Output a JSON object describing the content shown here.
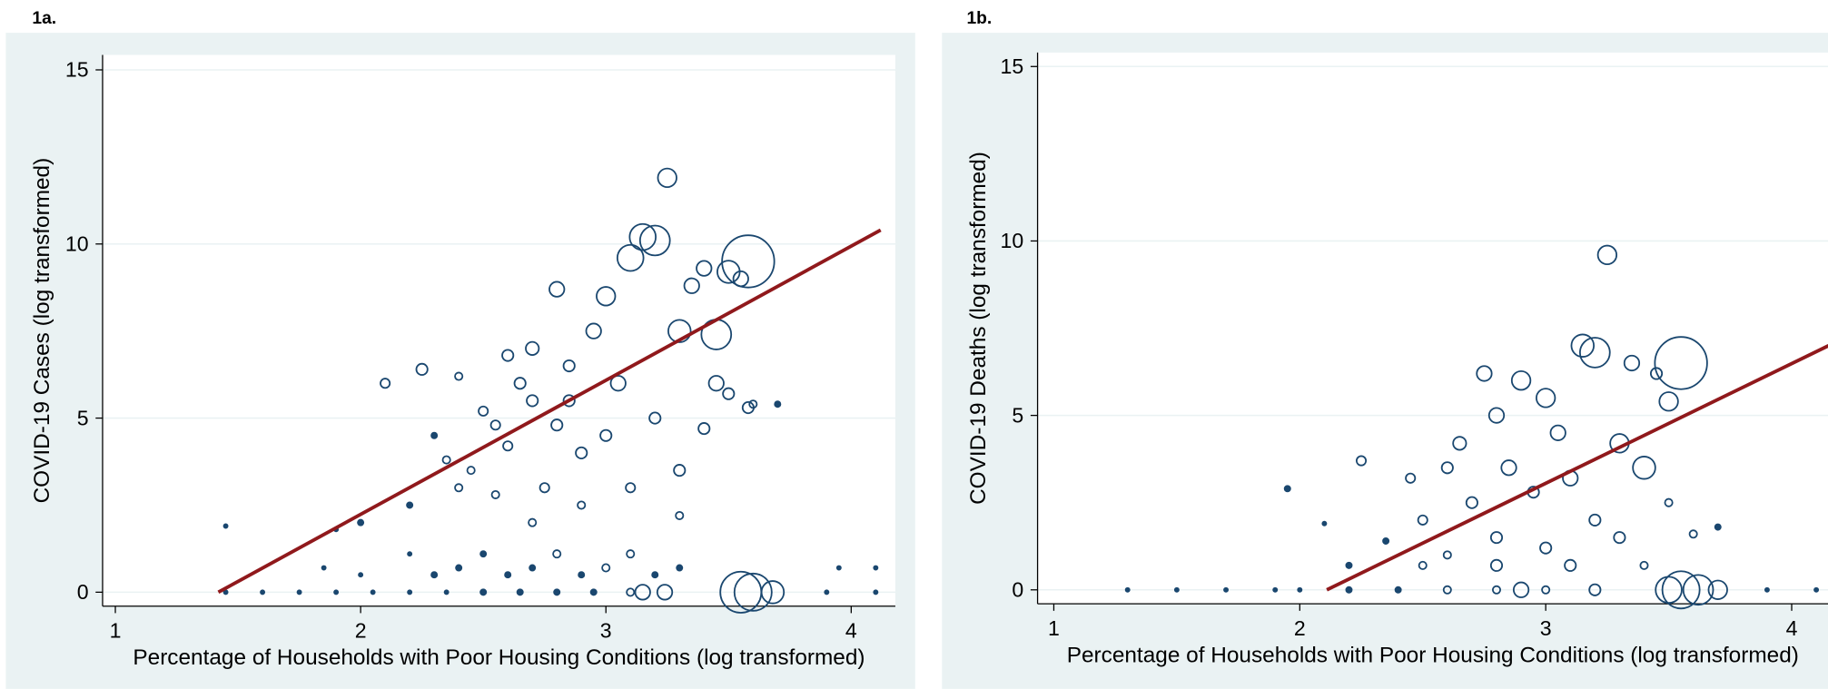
{
  "chart_data": [
    {
      "type": "scatter",
      "title": "1a.",
      "x_label": "Percentage of Households with Poor Housing Conditions (log transformed)",
      "y_label": "COVID-19 Cases (log transformed)",
      "xlim": [
        0.948,
        4.18
      ],
      "ylim": [
        -0.4,
        15.43
      ],
      "xticks": [
        1,
        2,
        3,
        4
      ],
      "yticks": [
        0,
        5,
        10,
        15
      ],
      "grid": true,
      "color": "#1a476f",
      "x": [
        1.45,
        1.6,
        1.75,
        1.9,
        2.05,
        2.2,
        2.35,
        2.5,
        2.65,
        2.8,
        2.95,
        3.1,
        3.15,
        3.24,
        3.55,
        3.6,
        3.68,
        3.9,
        4.1,
        2.0,
        2.3,
        2.6,
        2.9,
        3.2,
        1.85,
        2.4,
        2.7,
        3.0,
        3.3,
        3.95,
        4.1,
        2.2,
        2.5,
        2.8,
        3.1,
        1.45,
        2.1,
        2.25,
        2.3,
        2.4,
        2.45,
        2.5,
        2.55,
        2.6,
        2.65,
        2.7,
        2.75,
        2.8,
        2.85,
        2.9,
        2.95,
        3.0,
        3.05,
        3.1,
        3.15,
        3.2,
        3.25,
        3.3,
        3.35,
        3.4,
        3.5,
        3.55,
        3.58,
        3.6,
        3.45,
        3.4,
        3.3,
        3.3,
        3.2,
        3.1,
        2.9,
        2.7,
        2.6,
        2.85,
        3.0,
        2.8,
        2.7,
        2.55,
        2.4,
        2.35,
        2.2,
        2.0,
        1.9,
        3.5,
        3.45,
        3.58,
        3.7
      ],
      "y": [
        0,
        0,
        0,
        0,
        0,
        0,
        0,
        0,
        0,
        0,
        0,
        0,
        0,
        0,
        0,
        0,
        0,
        0,
        0,
        0.5,
        0.5,
        0.5,
        0.5,
        0.5,
        0.7,
        0.7,
        0.7,
        0.7,
        0.7,
        0.7,
        0.7,
        1.1,
        1.1,
        1.1,
        1.1,
        1.9,
        6.0,
        6.4,
        4.5,
        6.2,
        3.5,
        5.2,
        2.8,
        4.2,
        6.0,
        7.0,
        3.0,
        8.7,
        5.5,
        4.0,
        7.5,
        8.5,
        6.0,
        9.6,
        10.2,
        10.1,
        11.9,
        7.5,
        8.8,
        9.3,
        9.2,
        9.0,
        9.5,
        5.4,
        6.0,
        4.7,
        3.5,
        2.2,
        5.0,
        3.0,
        2.5,
        2.0,
        6.8,
        6.5,
        4.5,
        4.8,
        5.5,
        4.8,
        3.0,
        3.8,
        2.5,
        2.0,
        1.8,
        5.7,
        7.4,
        5.3,
        5.4
      ],
      "sizes": [
        1,
        1,
        1,
        1,
        1,
        1,
        1,
        1.5,
        1.5,
        1.5,
        1.5,
        2,
        4,
        4,
        11,
        10,
        6,
        1,
        1,
        1,
        1.5,
        1.5,
        1.5,
        1.5,
        1,
        1.5,
        1.5,
        2,
        1.5,
        1,
        1,
        1,
        1.5,
        2,
        2,
        1,
        2.5,
        3,
        1.5,
        2,
        2,
        2.5,
        2,
        2.5,
        3,
        3.5,
        2.5,
        4,
        3,
        3,
        4,
        5,
        4,
        7,
        7,
        8,
        5,
        6,
        4,
        4,
        6,
        4,
        14,
        2,
        4,
        3,
        3,
        2,
        3,
        2.5,
        2,
        2,
        3,
        3,
        3,
        3,
        3,
        2.5,
        2,
        2,
        1.5,
        1.5,
        1,
        3,
        8,
        3,
        1.5
      ],
      "fit": {
        "x": [
          1.42,
          4.12
        ],
        "y": [
          0,
          10.4
        ],
        "color": "#90191c"
      }
    },
    {
      "type": "scatter",
      "title": "1b.",
      "x_label": "Percentage of Households with Poor Housing Conditions (log transformed)",
      "y_label": "COVID-19 Deaths (log transformed)",
      "xlim": [
        0.934,
        4.214
      ],
      "ylim": [
        -0.4,
        15.4
      ],
      "xticks": [
        1,
        2,
        3,
        4
      ],
      "yticks": [
        0,
        5,
        10,
        15
      ],
      "grid": true,
      "color": "#1a476f",
      "x": [
        1.3,
        1.5,
        1.7,
        1.9,
        2.0,
        2.2,
        2.4,
        2.6,
        2.8,
        2.9,
        3.0,
        3.2,
        3.5,
        3.55,
        3.62,
        3.7,
        3.9,
        4.1,
        2.2,
        2.5,
        2.8,
        3.1,
        3.4,
        1.95,
        2.1,
        2.25,
        2.35,
        2.45,
        2.5,
        2.6,
        2.65,
        2.7,
        2.75,
        2.8,
        2.85,
        2.9,
        2.95,
        3.0,
        3.05,
        3.1,
        3.15,
        3.2,
        3.25,
        3.3,
        3.35,
        3.4,
        3.45,
        3.5,
        3.55,
        3.3,
        3.5,
        3.6,
        3.7,
        2.8,
        3.0,
        3.2,
        2.6
      ],
      "y": [
        0,
        0,
        0,
        0,
        0,
        0,
        0,
        0,
        0,
        0,
        0,
        0,
        0,
        0,
        0,
        0,
        0,
        0,
        0.7,
        0.7,
        0.7,
        0.7,
        0.7,
        2.9,
        1.9,
        3.7,
        1.4,
        3.2,
        2.0,
        3.5,
        4.2,
        2.5,
        6.2,
        5.0,
        3.5,
        6.0,
        2.8,
        5.5,
        4.5,
        3.2,
        7.0,
        6.8,
        9.6,
        4.2,
        6.5,
        3.5,
        6.2,
        5.4,
        6.5,
        1.5,
        2.5,
        1.6,
        1.8,
        1.5,
        1.2,
        2.0,
        1.0
      ],
      "sizes": [
        1,
        1,
        1,
        1,
        1,
        1.5,
        1.5,
        2,
        2,
        4,
        2,
        3,
        7,
        10,
        8,
        5,
        1,
        1,
        1.5,
        2,
        3,
        3,
        2,
        1.5,
        1,
        2.5,
        1.5,
        2.5,
        2.5,
        3,
        3.5,
        3,
        4,
        4,
        4,
        5,
        3,
        5,
        4,
        4,
        6,
        8,
        5,
        5,
        4,
        6,
        3,
        5,
        14,
        3,
        2,
        2,
        1.5,
        3,
        3,
        3,
        2
      ],
      "fit": {
        "x": [
          2.11,
          4.15
        ],
        "y": [
          0,
          7.0
        ],
        "color": "#90191c"
      }
    }
  ]
}
